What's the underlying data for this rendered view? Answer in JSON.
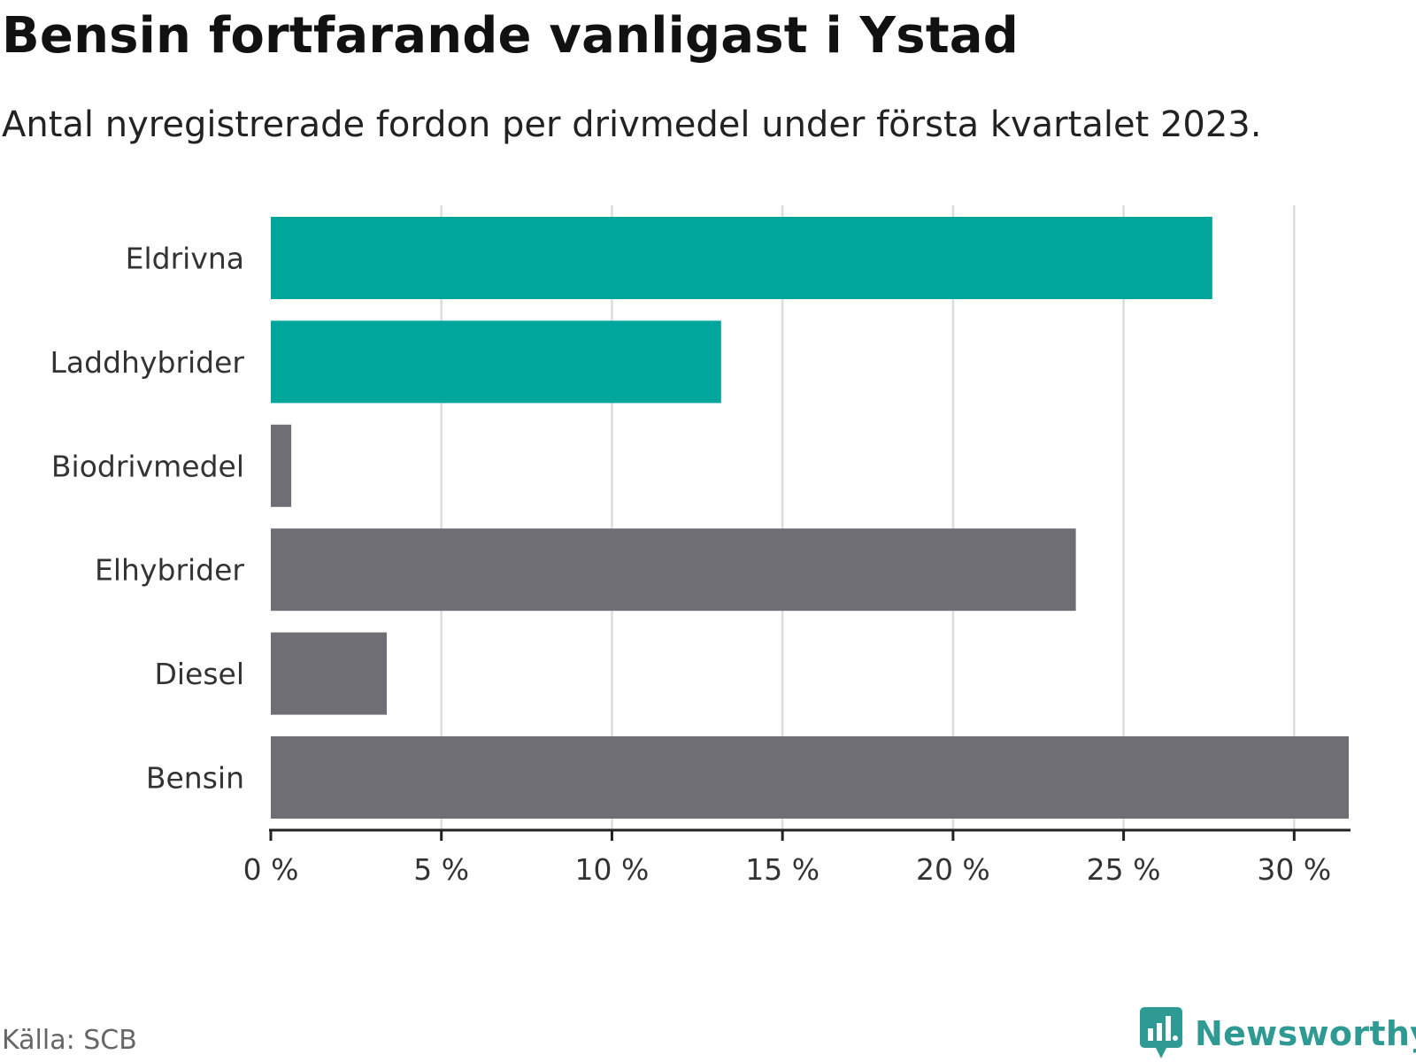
{
  "header": {
    "title": "Bensin fortfarande vanligast i Ystad",
    "subtitle": "Antal nyregistrerade fordon per drivmedel under första kvartalet 2023."
  },
  "footer": {
    "source": "Källa: SCB",
    "brand_name": "Newsworthy"
  },
  "colors": {
    "highlight": "#00a59b",
    "default": "#6f6e74",
    "brand": "#2f9a93",
    "grid": "#dddddd",
    "axis": "#222222"
  },
  "chart_data": {
    "type": "bar",
    "orientation": "horizontal",
    "categories": [
      "Eldrivna",
      "Laddhybrider",
      "Biodrivmedel",
      "Elhybrider",
      "Diesel",
      "Bensin"
    ],
    "values": [
      27.6,
      13.2,
      0.6,
      23.6,
      3.4,
      31.6
    ],
    "highlighted": [
      true,
      true,
      false,
      false,
      false,
      false
    ],
    "x_ticks": [
      0,
      5,
      10,
      15,
      20,
      25,
      30
    ],
    "x_tick_labels": [
      "0 %",
      "5 %",
      "10 %",
      "15 %",
      "20 %",
      "25 %",
      "30 %"
    ],
    "xlim": [
      0,
      31.6
    ],
    "grid": true,
    "legend": "none"
  }
}
